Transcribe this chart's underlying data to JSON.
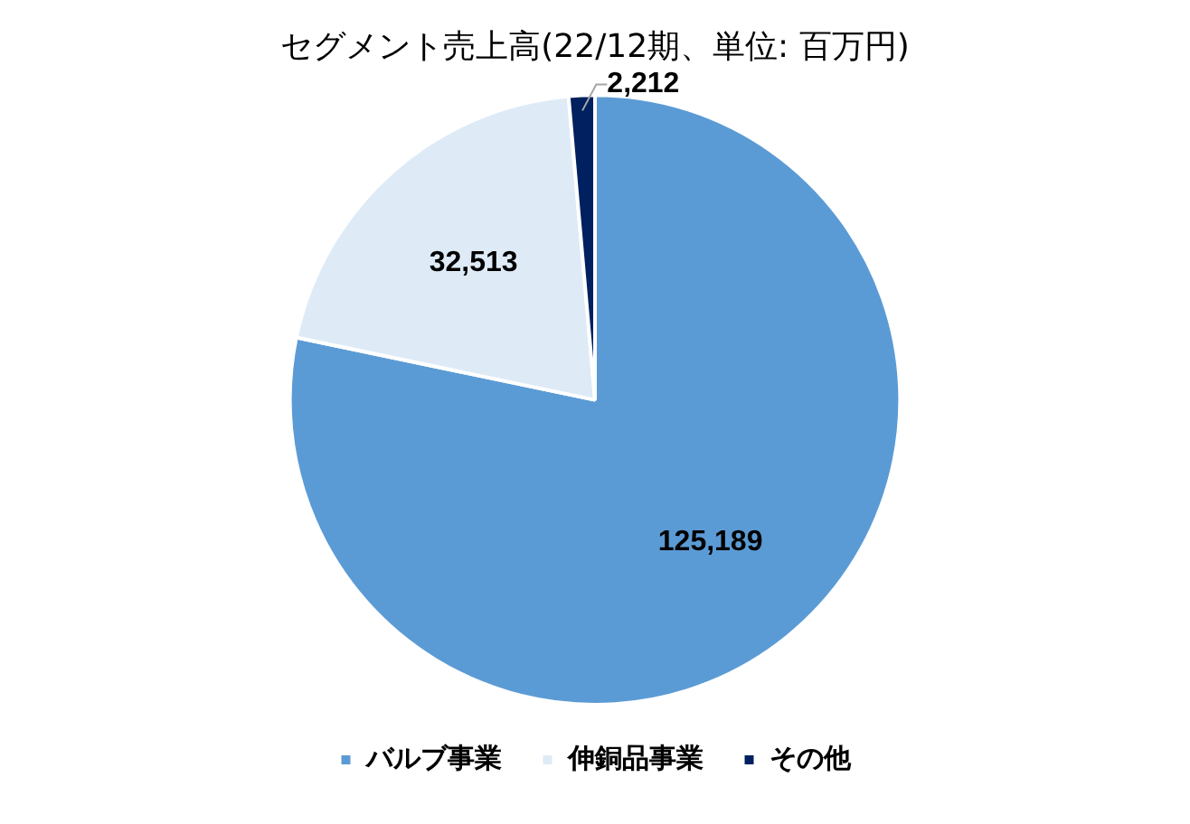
{
  "chart_data": {
    "type": "pie",
    "title": "セグメント売上高(22/12期、単位: 百万円)",
    "categories": [
      "バルブ事業",
      "伸銅品事業",
      "その他"
    ],
    "values": [
      125189,
      32513,
      2212
    ],
    "colors": [
      "#5b9bd5",
      "#deebf7",
      "#002060"
    ],
    "value_labels": [
      "125,189",
      "32,513",
      "2,212"
    ],
    "legend": "bottom"
  }
}
